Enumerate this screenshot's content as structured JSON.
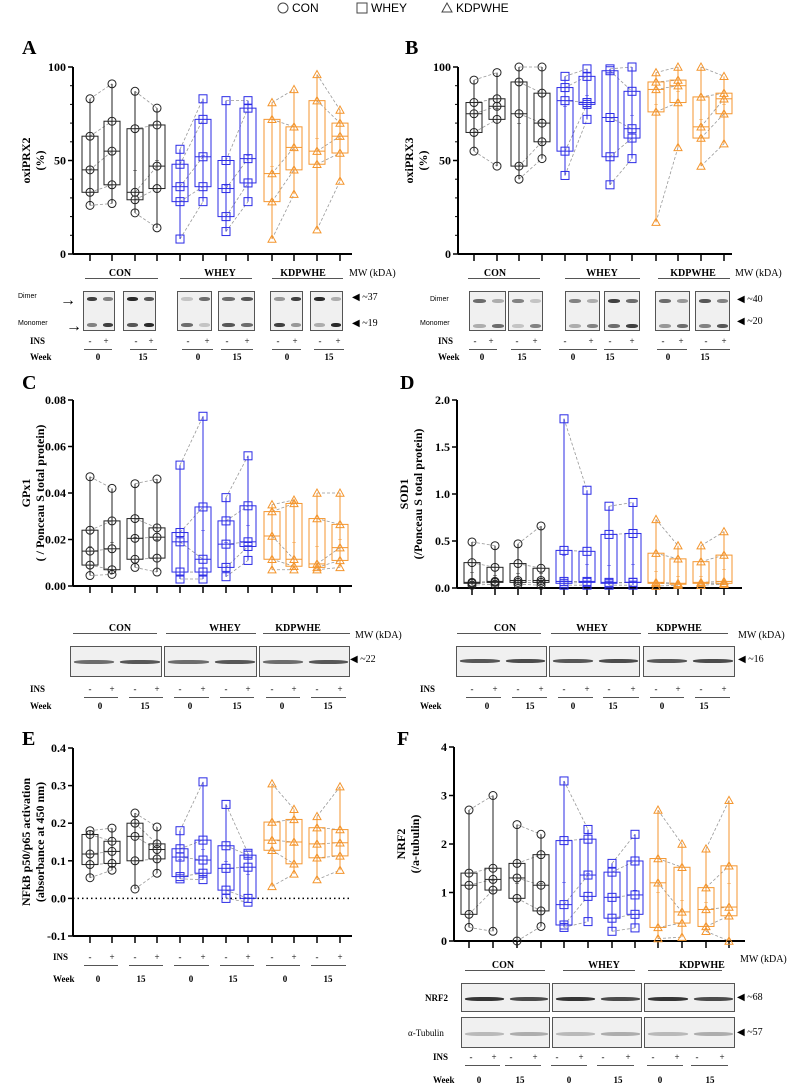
{
  "legend": {
    "items": [
      {
        "label": "CON",
        "marker": "circle",
        "color": "#222222"
      },
      {
        "label": "WHEY",
        "marker": "square",
        "color": "#2b2be6"
      },
      {
        "label": "KDPWHE",
        "marker": "triangle",
        "color": "#f4962f"
      }
    ]
  },
  "common": {
    "groups": [
      "CON",
      "WHEY",
      "KDPWHE"
    ],
    "mw_label": "MW (kDA)",
    "ins_label": "INS",
    "ins_values": [
      "-",
      "+",
      "-",
      "+",
      "-",
      "+",
      "-",
      "+",
      "-",
      "+",
      "-",
      "+"
    ],
    "week_label": "Week",
    "week_values": [
      "0",
      "15",
      "0",
      "15",
      "0",
      "15"
    ]
  },
  "blots": {
    "A": {
      "bands": [
        "Dimer",
        "Monomer"
      ],
      "mw": [
        "~37",
        "~19"
      ]
    },
    "B": {
      "bands": [
        "Dimer",
        "Monomer"
      ],
      "mw": [
        "~40",
        "~20"
      ]
    },
    "C": {
      "bands": [],
      "mw": [
        "~22"
      ]
    },
    "D": {
      "bands": [],
      "mw": [
        "~16"
      ]
    },
    "F": {
      "bands": [
        "NRF2",
        "α-Tubulin"
      ],
      "mw": [
        "~68",
        "~57"
      ]
    }
  },
  "chart_data": [
    {
      "panel": "A",
      "type": "box",
      "ylabel": "oxiPRX2",
      "ylabel2": "(%)",
      "ylim": [
        0,
        100
      ],
      "yticks": [
        "0",
        "50",
        "100"
      ],
      "categories": [
        "CON W0 -",
        "CON W0 +",
        "CON W15 -",
        "CON W15 +",
        "WHEY W0 -",
        "WHEY W0 +",
        "WHEY W15 -",
        "WHEY W15 +",
        "KDPWHE W0 -",
        "KDPWHE W0 +",
        "KDPWHE W15 -",
        "KDPWHE W15 +"
      ],
      "stats_order": [
        "min",
        "q1",
        "median",
        "q3",
        "max",
        "mean"
      ],
      "boxes": [
        [
          26,
          33,
          45,
          63,
          83,
          47
        ],
        [
          27,
          37,
          55,
          71,
          91,
          55
        ],
        [
          22,
          29,
          33,
          67,
          87,
          45
        ],
        [
          14,
          35,
          47,
          69,
          78,
          50
        ],
        [
          8,
          28,
          36,
          48,
          56,
          36
        ],
        [
          28,
          36,
          52,
          72,
          83,
          53
        ],
        [
          12,
          20,
          35,
          50,
          82,
          37
        ],
        [
          28,
          38,
          51,
          78,
          82,
          53
        ],
        [
          8,
          28,
          43,
          72,
          81,
          47
        ],
        [
          32,
          45,
          57,
          68,
          88,
          56
        ],
        [
          13,
          48,
          55,
          82,
          96,
          62
        ],
        [
          39,
          54,
          63,
          70,
          77,
          62
        ]
      ]
    },
    {
      "panel": "B",
      "type": "box",
      "ylabel": "oxiPRX3",
      "ylabel2": "(%)",
      "ylim": [
        0,
        100
      ],
      "yticks": [
        "0",
        "50",
        "100"
      ],
      "boxes": [
        [
          55,
          65,
          75,
          81,
          93,
          73
        ],
        [
          47,
          72,
          79,
          83,
          97,
          78
        ],
        [
          40,
          47,
          75,
          92,
          100,
          70
        ],
        [
          51,
          60,
          70,
          86,
          100,
          72
        ],
        [
          42,
          55,
          82,
          89,
          95,
          79
        ],
        [
          72,
          80,
          81,
          95,
          99,
          85
        ],
        [
          37,
          52,
          73,
          98,
          99,
          73
        ],
        [
          51,
          62,
          67,
          87,
          100,
          74
        ],
        [
          17,
          76,
          88,
          92,
          97,
          80
        ],
        [
          57,
          81,
          90,
          93,
          100,
          87
        ],
        [
          47,
          62,
          68,
          84,
          100,
          72
        ],
        [
          59,
          75,
          83,
          86,
          95,
          80
        ]
      ]
    },
    {
      "panel": "C",
      "type": "box",
      "ylabel": "GPx1",
      "ylabel2": "( / Ponceau S total protein)",
      "ylim": [
        0,
        0.08
      ],
      "yticks": [
        "0.00",
        "0.02",
        "0.04",
        "0.06",
        "0.08"
      ],
      "boxes": [
        [
          0.0045,
          0.009,
          0.015,
          0.024,
          0.047,
          0.017
        ],
        [
          0.005,
          0.007,
          0.016,
          0.028,
          0.042,
          0.019
        ],
        [
          0.008,
          0.0115,
          0.0205,
          0.029,
          0.044,
          0.021
        ],
        [
          0.006,
          0.012,
          0.021,
          0.025,
          0.046,
          0.02
        ],
        [
          0.003,
          0.006,
          0.019,
          0.023,
          0.052,
          0.019
        ],
        [
          0.003,
          0.006,
          0.0115,
          0.034,
          0.073,
          0.024
        ],
        [
          0.004,
          0.008,
          0.018,
          0.028,
          0.038,
          0.019
        ],
        [
          0.011,
          0.017,
          0.019,
          0.0345,
          0.056,
          0.026
        ],
        [
          0.007,
          0.0115,
          0.0215,
          0.032,
          0.035,
          0.022
        ],
        [
          0.007,
          0.0085,
          0.0115,
          0.0355,
          0.037,
          0.019
        ],
        [
          0.007,
          0.008,
          0.0095,
          0.029,
          0.04,
          0.017
        ],
        [
          0.008,
          0.011,
          0.0165,
          0.0265,
          0.04,
          0.02
        ]
      ]
    },
    {
      "panel": "D",
      "type": "box",
      "ylabel": "SOD1",
      "ylabel2": "(/Ponceau S total protein)",
      "ylim": [
        0,
        2.0
      ],
      "yticks": [
        "0.0",
        "0.5",
        "1.0",
        "1.5",
        "2.0"
      ],
      "boxes": [
        [
          0.03,
          0.05,
          0.06,
          0.27,
          0.49,
          0.17
        ],
        [
          0.04,
          0.06,
          0.07,
          0.22,
          0.45,
          0.14
        ],
        [
          0.04,
          0.06,
          0.08,
          0.26,
          0.47,
          0.16
        ],
        [
          0.03,
          0.06,
          0.08,
          0.21,
          0.66,
          0.16
        ],
        [
          0.03,
          0.05,
          0.07,
          0.4,
          1.8,
          0.35
        ],
        [
          0.03,
          0.06,
          0.07,
          0.39,
          1.04,
          0.25
        ],
        [
          0.03,
          0.05,
          0.06,
          0.57,
          0.87,
          0.24
        ],
        [
          0.03,
          0.06,
          0.06,
          0.58,
          0.91,
          0.25
        ],
        [
          0.02,
          0.05,
          0.06,
          0.37,
          0.73,
          0.18
        ],
        [
          0.03,
          0.04,
          0.05,
          0.31,
          0.45,
          0.13
        ],
        [
          0.03,
          0.05,
          0.06,
          0.28,
          0.45,
          0.13
        ],
        [
          0.04,
          0.05,
          0.07,
          0.35,
          0.6,
          0.2
        ]
      ]
    },
    {
      "panel": "E",
      "type": "box",
      "ylabel": "NFkB p50/p65 activation",
      "ylabel2": "(absorbance at 450 nm)",
      "ylim": [
        -0.1,
        0.4
      ],
      "yticks": [
        "-0.1",
        "0.0",
        "0.1",
        "0.2",
        "0.3",
        "0.4"
      ],
      "reference_line": 0,
      "boxes": [
        [
          0.055,
          0.09,
          0.118,
          0.17,
          0.18,
          0.12
        ],
        [
          0.075,
          0.093,
          0.125,
          0.152,
          0.187,
          0.125
        ],
        [
          0.025,
          0.1,
          0.165,
          0.2,
          0.227,
          0.155
        ],
        [
          0.067,
          0.105,
          0.13,
          0.145,
          0.19,
          0.13
        ],
        [
          0.052,
          0.058,
          0.11,
          0.132,
          0.18,
          0.105
        ],
        [
          0.05,
          0.067,
          0.102,
          0.155,
          0.31,
          0.13
        ],
        [
          0.0,
          0.022,
          0.08,
          0.14,
          0.25,
          0.1
        ],
        [
          -0.01,
          0.0,
          0.083,
          0.115,
          0.12,
          0.065
        ],
        [
          0.032,
          0.128,
          0.155,
          0.203,
          0.305,
          0.16
        ],
        [
          0.065,
          0.092,
          0.15,
          0.21,
          0.237,
          0.145
        ],
        [
          0.05,
          0.108,
          0.145,
          0.188,
          0.218,
          0.145
        ],
        [
          0.075,
          0.113,
          0.148,
          0.183,
          0.297,
          0.15
        ]
      ]
    },
    {
      "panel": "F",
      "type": "box",
      "ylabel": "NRF2",
      "ylabel2": "(/a-tubulin)",
      "ylim": [
        0,
        4
      ],
      "yticks": [
        "0",
        "1",
        "2",
        "3",
        "4"
      ],
      "boxes": [
        [
          0.28,
          0.55,
          1.15,
          1.4,
          2.7,
          1.15
        ],
        [
          0.2,
          1.05,
          1.27,
          1.5,
          3.0,
          1.25
        ],
        [
          0.0,
          0.88,
          1.3,
          1.6,
          2.4,
          1.2
        ],
        [
          0.3,
          0.62,
          1.15,
          1.78,
          2.2,
          1.2
        ],
        [
          0.28,
          0.33,
          0.75,
          2.07,
          3.3,
          1.22
        ],
        [
          0.4,
          0.92,
          1.36,
          2.1,
          2.3,
          1.4
        ],
        [
          0.2,
          0.47,
          0.9,
          1.42,
          1.6,
          0.9
        ],
        [
          0.27,
          0.55,
          0.95,
          1.65,
          2.2,
          1.05
        ],
        [
          0.05,
          0.28,
          1.2,
          1.7,
          2.7,
          1.0
        ],
        [
          0.08,
          0.37,
          0.6,
          1.52,
          2.0,
          0.85
        ],
        [
          0.2,
          0.3,
          0.65,
          1.1,
          1.9,
          0.8
        ],
        [
          0.0,
          0.52,
          0.7,
          1.55,
          2.9,
          1.2
        ]
      ]
    }
  ]
}
